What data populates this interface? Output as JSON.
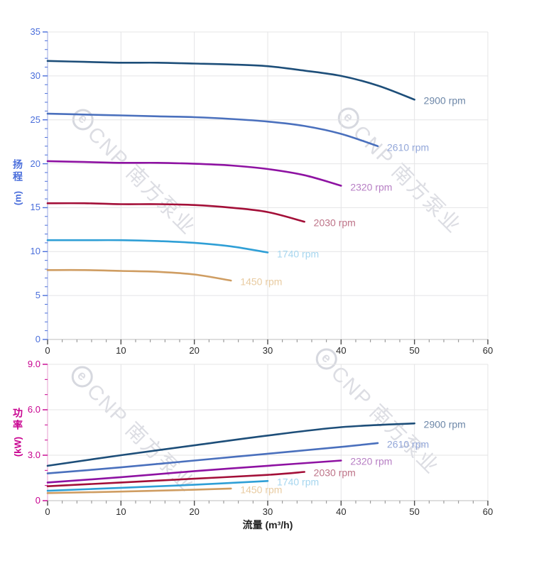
{
  "watermark": {
    "logo": "e",
    "text": "CNP 南方泵业"
  },
  "chart_data": [
    {
      "type": "line",
      "title": "",
      "xlabel": "",
      "ylabel": "扬程 (m)",
      "ylabel_chars": [
        "扬",
        "程"
      ],
      "ylabel_unit": "(m)",
      "axis_label_color": "#4a6edb",
      "y_axis_line_color": "#b6c0ea",
      "x_axis_line_color": "#c9c9c9",
      "x_tick_color": "#2b2b2b",
      "grid": true,
      "grid_color": "#e4e4e6",
      "xlim": [
        0,
        60
      ],
      "ylim": [
        0,
        35
      ],
      "x_major_ticks": [
        0,
        10,
        20,
        30,
        40,
        50,
        60
      ],
      "x_tick_labels": [
        "0",
        "10",
        "20",
        "30",
        "40",
        "50",
        "60"
      ],
      "x_minor_step": 2,
      "y_major_ticks": [
        0,
        5,
        10,
        15,
        20,
        25,
        30,
        35
      ],
      "y_tick_labels": [
        "0",
        "5",
        "10",
        "15",
        "20",
        "25",
        "30",
        "35"
      ],
      "y_minor_step": 1,
      "legend_position": "line-end-labels",
      "series": [
        {
          "name": "2900 rpm",
          "color": "#1d4e79",
          "label_color": "#6d87a8",
          "points": [
            [
              0,
              31.7
            ],
            [
              5,
              31.6
            ],
            [
              10,
              31.5
            ],
            [
              15,
              31.5
            ],
            [
              20,
              31.4
            ],
            [
              25,
              31.3
            ],
            [
              30,
              31.1
            ],
            [
              35,
              30.6
            ],
            [
              40,
              30.0
            ],
            [
              45,
              28.9
            ],
            [
              50,
              27.3
            ]
          ]
        },
        {
          "name": "2610 rpm",
          "color": "#4a70bd",
          "label_color": "#93a7d9",
          "points": [
            [
              0,
              25.7
            ],
            [
              5,
              25.6
            ],
            [
              10,
              25.5
            ],
            [
              15,
              25.4
            ],
            [
              20,
              25.3
            ],
            [
              25,
              25.1
            ],
            [
              30,
              24.8
            ],
            [
              35,
              24.3
            ],
            [
              40,
              23.4
            ],
            [
              45,
              22.0
            ]
          ]
        },
        {
          "name": "2320 rpm",
          "color": "#8e12a2",
          "label_color": "#b77fc4",
          "points": [
            [
              0,
              20.3
            ],
            [
              5,
              20.2
            ],
            [
              10,
              20.1
            ],
            [
              15,
              20.1
            ],
            [
              20,
              20.0
            ],
            [
              25,
              19.8
            ],
            [
              30,
              19.4
            ],
            [
              35,
              18.7
            ],
            [
              40,
              17.5
            ]
          ]
        },
        {
          "name": "2030 rpm",
          "color": "#a30f38",
          "label_color": "#bd7287",
          "points": [
            [
              0,
              15.5
            ],
            [
              5,
              15.5
            ],
            [
              10,
              15.4
            ],
            [
              15,
              15.4
            ],
            [
              20,
              15.3
            ],
            [
              25,
              15.0
            ],
            [
              30,
              14.5
            ],
            [
              35,
              13.4
            ]
          ]
        },
        {
          "name": "1740 rpm",
          "color": "#2f9fd6",
          "label_color": "#a6d6ef",
          "points": [
            [
              0,
              11.3
            ],
            [
              5,
              11.3
            ],
            [
              10,
              11.3
            ],
            [
              15,
              11.2
            ],
            [
              20,
              11.0
            ],
            [
              25,
              10.6
            ],
            [
              30,
              9.9
            ]
          ]
        },
        {
          "name": "1450 rpm",
          "color": "#cf9d62",
          "label_color": "#e8cba1",
          "points": [
            [
              0,
              7.9
            ],
            [
              5,
              7.9
            ],
            [
              10,
              7.8
            ],
            [
              15,
              7.7
            ],
            [
              20,
              7.4
            ],
            [
              25,
              6.7
            ]
          ]
        }
      ]
    },
    {
      "type": "line",
      "title": "",
      "xlabel": "流量 (m³/h)",
      "ylabel": "功率 (kW)",
      "ylabel_chars": [
        "功",
        "率"
      ],
      "ylabel_unit": "(kW)",
      "axis_label_color": "#c8008f",
      "y_axis_line_color": "#eebbdd",
      "x_axis_line_color": "#c9c9c9",
      "x_tick_color": "#2b2b2b",
      "grid": true,
      "grid_color": "#e4e4e6",
      "xlim": [
        0,
        60
      ],
      "ylim": [
        0,
        9
      ],
      "x_major_ticks": [
        0,
        10,
        20,
        30,
        40,
        50,
        60
      ],
      "x_tick_labels": [
        "0",
        "10",
        "20",
        "30",
        "40",
        "50",
        "60"
      ],
      "x_minor_step": 2,
      "y_major_ticks": [
        0,
        3,
        6,
        9
      ],
      "y_tick_labels": [
        "0",
        "3.0",
        "6.0",
        "9.0"
      ],
      "y_minor_step": 1,
      "legend_position": "line-end-labels",
      "series": [
        {
          "name": "2900 rpm",
          "color": "#1d4e79",
          "label_color": "#6d87a8",
          "points": [
            [
              0,
              2.3
            ],
            [
              10,
              3.0
            ],
            [
              20,
              3.65
            ],
            [
              30,
              4.3
            ],
            [
              40,
              4.85
            ],
            [
              50,
              5.1
            ]
          ]
        },
        {
          "name": "2610 rpm",
          "color": "#4a70bd",
          "label_color": "#93a7d9",
          "points": [
            [
              0,
              1.8
            ],
            [
              10,
              2.2
            ],
            [
              20,
              2.65
            ],
            [
              30,
              3.1
            ],
            [
              40,
              3.55
            ],
            [
              45,
              3.8
            ]
          ]
        },
        {
          "name": "2320 rpm",
          "color": "#8e12a2",
          "label_color": "#b77fc4",
          "points": [
            [
              0,
              1.2
            ],
            [
              10,
              1.55
            ],
            [
              20,
              1.95
            ],
            [
              30,
              2.3
            ],
            [
              40,
              2.65
            ]
          ]
        },
        {
          "name": "2030 rpm",
          "color": "#a30f38",
          "label_color": "#bd7287",
          "points": [
            [
              0,
              0.95
            ],
            [
              10,
              1.2
            ],
            [
              20,
              1.45
            ],
            [
              30,
              1.7
            ],
            [
              35,
              1.9
            ]
          ]
        },
        {
          "name": "1740 rpm",
          "color": "#2f9fd6",
          "label_color": "#a6d6ef",
          "points": [
            [
              0,
              0.65
            ],
            [
              10,
              0.85
            ],
            [
              20,
              1.05
            ],
            [
              30,
              1.3
            ]
          ]
        },
        {
          "name": "1450 rpm",
          "color": "#cf9d62",
          "label_color": "#e8cba1",
          "points": [
            [
              0,
              0.5
            ],
            [
              10,
              0.6
            ],
            [
              20,
              0.72
            ],
            [
              25,
              0.8
            ]
          ]
        }
      ]
    }
  ]
}
